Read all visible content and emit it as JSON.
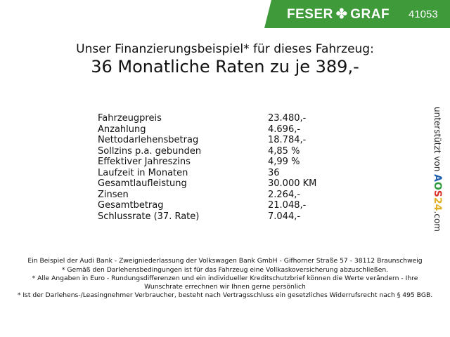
{
  "header": {
    "brand": "FESER",
    "brand2": "GRAF",
    "brand_icon": "clover-icon",
    "code": "41053",
    "accent": "#3f9a3a"
  },
  "title": "Unser Finanzierungsbeispiel* für dieses Fahrzeug:",
  "subtitle": "36 Monatliche Raten zu je 389,-",
  "rows": [
    {
      "label": "Fahrzeugpreis",
      "value": "23.480,-"
    },
    {
      "label": "Anzahlung",
      "value": "4.696,-"
    },
    {
      "label": "Nettodarlehensbetrag",
      "value": "18.784,-"
    },
    {
      "label": "Sollzins p.a. gebunden",
      "value": "4,85 %"
    },
    {
      "label": "Effektiver Jahreszins",
      "value": "4,99 %"
    },
    {
      "label": "Laufzeit in Monaten",
      "value": "36"
    },
    {
      "label": "Gesamtlaufleistung",
      "value": "30.000 KM"
    },
    {
      "label": "Zinsen",
      "value": "2.264,-"
    },
    {
      "label": "Gesamtbetrag",
      "value": "21.048,-"
    },
    {
      "label": "Schlussrate (37. Rate)",
      "value": "7.044,-"
    }
  ],
  "footnotes": [
    "Ein Beispiel der Audi Bank - Zweigniederlassung der Volkswagen Bank GmbH - Gifhorner Straße 57 - 38112 Braunschweig",
    "* Gemäß den Darlehensbedingungen ist für das Fahrzeug eine Vollkaskoversicherung abzuschließen.",
    "* Alle Angaben in Euro - Rundungsdifferenzen und ein individueller Kreditschutzbrief können die Werte verändern - Ihre Wunschrate errechnen wir Ihnen gerne persönlich",
    "* Ist der Darlehens-/Leasingnehmer Verbraucher, besteht nach Vertragsschluss ein gesetzliches Widerrufsrecht nach § 495 BGB."
  ],
  "side": {
    "prefix": "unterstützt von",
    "logo": "AOS24",
    "suffix": ".com"
  }
}
